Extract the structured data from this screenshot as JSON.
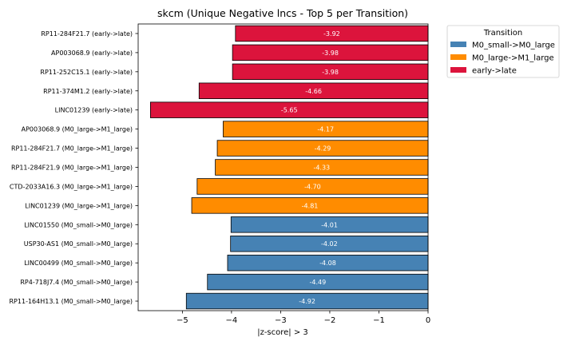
{
  "chart_data": {
    "type": "bar",
    "orientation": "horizontal",
    "title": "skcm (Unique Negative lncs - Top 5 per Transition)",
    "xlabel": "|z-score| > 3",
    "ylabel": "",
    "xlim": [
      -5.9,
      0
    ],
    "xticks": [
      -5,
      -4,
      -3,
      -2,
      -1,
      0
    ],
    "grid": false,
    "legend": {
      "title": "Transition",
      "position": "top-right-outside",
      "entries": [
        {
          "label": "M0_small->M0_large",
          "color": "#4682b4"
        },
        {
          "label": "M0_large->M1_large",
          "color": "#ff8c00"
        },
        {
          "label": "early->late",
          "color": "#dc143c"
        }
      ]
    },
    "bars": [
      {
        "label": "RP11-284F21.7 (early->late)",
        "value": -3.92,
        "text": "-3.92",
        "group": "early->late"
      },
      {
        "label": "AP003068.9 (early->late)",
        "value": -3.98,
        "text": "-3.98",
        "group": "early->late"
      },
      {
        "label": "RP11-252C15.1 (early->late)",
        "value": -3.98,
        "text": "-3.98",
        "group": "early->late"
      },
      {
        "label": "RP11-374M1.2 (early->late)",
        "value": -4.66,
        "text": "-4.66",
        "group": "early->late"
      },
      {
        "label": "LINC01239 (early->late)",
        "value": -5.65,
        "text": "-5.65",
        "group": "early->late"
      },
      {
        "label": "AP003068.9 (M0_large->M1_large)",
        "value": -4.17,
        "text": "-4.17",
        "group": "M0_large->M1_large"
      },
      {
        "label": "RP11-284F21.7 (M0_large->M1_large)",
        "value": -4.29,
        "text": "-4.29",
        "group": "M0_large->M1_large"
      },
      {
        "label": "RP11-284F21.9 (M0_large->M1_large)",
        "value": -4.33,
        "text": "-4.33",
        "group": "M0_large->M1_large"
      },
      {
        "label": "CTD-2033A16.3 (M0_large->M1_large)",
        "value": -4.7,
        "text": "-4.70",
        "group": "M0_large->M1_large"
      },
      {
        "label": "LINC01239 (M0_large->M1_large)",
        "value": -4.81,
        "text": "-4.81",
        "group": "M0_large->M1_large"
      },
      {
        "label": "LINC01550 (M0_small->M0_large)",
        "value": -4.01,
        "text": "-4.01",
        "group": "M0_small->M0_large"
      },
      {
        "label": "USP30-AS1 (M0_small->M0_large)",
        "value": -4.02,
        "text": "-4.02",
        "group": "M0_small->M0_large"
      },
      {
        "label": "LINC00499 (M0_small->M0_large)",
        "value": -4.08,
        "text": "-4.08",
        "group": "M0_small->M0_large"
      },
      {
        "label": "RP4-718J7.4 (M0_small->M0_large)",
        "value": -4.49,
        "text": "-4.49",
        "group": "M0_small->M0_large"
      },
      {
        "label": "RP11-164H13.1 (M0_small->M0_large)",
        "value": -4.92,
        "text": "-4.92",
        "group": "M0_small->M0_large"
      }
    ]
  }
}
